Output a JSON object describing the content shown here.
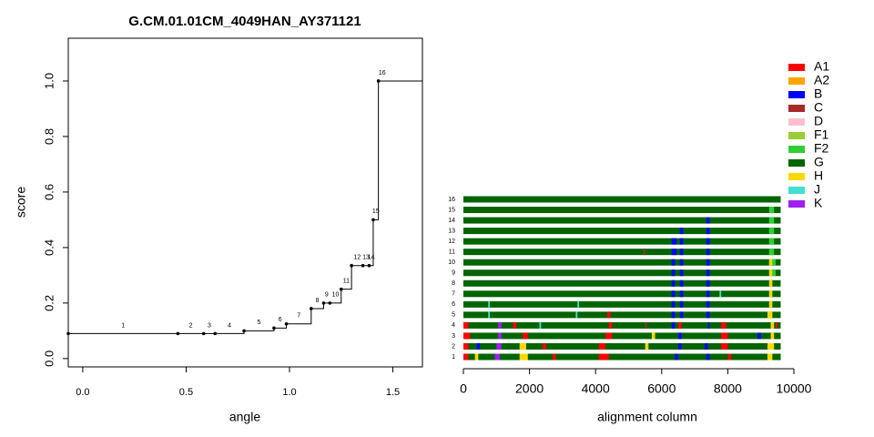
{
  "chart_data": [
    {
      "type": "step",
      "title": "G.CM.01.01CM_4049HAN_AY371121",
      "x_label": "angle",
      "y_label": "score",
      "xlim": [
        -0.07,
        1.643
      ],
      "ylim": [
        -0.03,
        1.154
      ],
      "xticks": [
        {
          "value": 0,
          "label": "0.0"
        },
        {
          "value": 0.5,
          "label": "0.5"
        },
        {
          "value": 1,
          "label": "1.0"
        },
        {
          "value": 1.5,
          "label": "1.5"
        }
      ],
      "yticks": [
        {
          "value": 0,
          "label": "0.0"
        },
        {
          "value": 0.2,
          "label": "0.2"
        },
        {
          "value": 0.4,
          "label": "0.4"
        },
        {
          "value": 0.6,
          "label": "0.6"
        },
        {
          "value": 0.8,
          "label": "0.8"
        },
        {
          "value": 1,
          "label": "1.0"
        }
      ],
      "points": [
        {
          "label": "1",
          "angle": -0.07,
          "score": 0.09
        },
        {
          "label": "2",
          "angle": 0.46,
          "score": 0.09
        },
        {
          "label": "3",
          "angle": 0.585,
          "score": 0.09
        },
        {
          "label": "4",
          "angle": 0.64,
          "score": 0.09
        },
        {
          "label": "5",
          "angle": 0.78,
          "score": 0.1
        },
        {
          "label": "6",
          "angle": 0.925,
          "score": 0.11
        },
        {
          "label": "7",
          "angle": 0.985,
          "score": 0.125
        },
        {
          "label": "8",
          "angle": 1.105,
          "score": 0.18
        },
        {
          "label": "9",
          "angle": 1.165,
          "score": 0.2
        },
        {
          "label": "10",
          "angle": 1.195,
          "score": 0.2
        },
        {
          "label": "11",
          "angle": 1.25,
          "score": 0.25
        },
        {
          "label": "12",
          "angle": 1.3,
          "score": 0.335
        },
        {
          "label": "13",
          "angle": 1.355,
          "score": 0.335
        },
        {
          "label": "14",
          "angle": 1.385,
          "score": 0.335
        },
        {
          "label": "15",
          "angle": 1.405,
          "score": 0.5
        },
        {
          "label": "16",
          "angle": 1.43,
          "score": 1.0
        }
      ]
    },
    {
      "type": "tracks",
      "x_label": "alignment column",
      "xlim": [
        0,
        10000
      ],
      "xticks": [
        0,
        2000,
        4000,
        6000,
        8000,
        10000
      ],
      "legend": [
        {
          "name": "A1",
          "color": "#ff0000"
        },
        {
          "name": "A2",
          "color": "#ffa500"
        },
        {
          "name": "B",
          "color": "#0000ff"
        },
        {
          "name": "C",
          "color": "#a52a2a"
        },
        {
          "name": "D",
          "color": "#ffc0cb"
        },
        {
          "name": "F1",
          "color": "#9acd32"
        },
        {
          "name": "F2",
          "color": "#32cd32"
        },
        {
          "name": "G",
          "color": "#006400"
        },
        {
          "name": "H",
          "color": "#ffd700"
        },
        {
          "name": "J",
          "color": "#40e0d0"
        },
        {
          "name": "K",
          "color": "#a020f0"
        }
      ],
      "tracks": [
        {
          "label": "1",
          "segments": [
            {
              "start": 0,
              "end": 9600,
              "subtype": "G"
            },
            {
              "start": 0,
              "end": 150,
              "subtype": "A1"
            },
            {
              "start": 350,
              "end": 450,
              "subtype": "H"
            },
            {
              "start": 950,
              "end": 1100,
              "subtype": "K"
            },
            {
              "start": 1700,
              "end": 1950,
              "subtype": "H"
            },
            {
              "start": 2700,
              "end": 2800,
              "subtype": "A1"
            },
            {
              "start": 4100,
              "end": 4400,
              "subtype": "A1"
            },
            {
              "start": 6400,
              "end": 6500,
              "subtype": "B"
            },
            {
              "start": 7350,
              "end": 7450,
              "subtype": "B"
            },
            {
              "start": 8000,
              "end": 8100,
              "subtype": "A1"
            },
            {
              "start": 9200,
              "end": 9350,
              "subtype": "H"
            }
          ]
        },
        {
          "label": "2",
          "segments": [
            {
              "start": 0,
              "end": 9600,
              "subtype": "G"
            },
            {
              "start": 0,
              "end": 150,
              "subtype": "A1"
            },
            {
              "start": 400,
              "end": 500,
              "subtype": "B"
            },
            {
              "start": 1000,
              "end": 1150,
              "subtype": "K"
            },
            {
              "start": 1700,
              "end": 1900,
              "subtype": "H"
            },
            {
              "start": 2400,
              "end": 2500,
              "subtype": "A1"
            },
            {
              "start": 4100,
              "end": 4300,
              "subtype": "A1"
            },
            {
              "start": 5500,
              "end": 5600,
              "subtype": "H"
            },
            {
              "start": 6500,
              "end": 6600,
              "subtype": "B"
            },
            {
              "start": 7300,
              "end": 7400,
              "subtype": "B"
            },
            {
              "start": 7800,
              "end": 8000,
              "subtype": "A1"
            },
            {
              "start": 9200,
              "end": 9400,
              "subtype": "H"
            }
          ]
        },
        {
          "label": "3",
          "segments": [
            {
              "start": 0,
              "end": 9600,
              "subtype": "G"
            },
            {
              "start": 0,
              "end": 200,
              "subtype": "A1"
            },
            {
              "start": 1050,
              "end": 1150,
              "subtype": "K"
            },
            {
              "start": 1800,
              "end": 1950,
              "subtype": "A1"
            },
            {
              "start": 4300,
              "end": 4500,
              "subtype": "A1"
            },
            {
              "start": 5700,
              "end": 5800,
              "subtype": "H"
            },
            {
              "start": 6500,
              "end": 6600,
              "subtype": "B"
            },
            {
              "start": 7800,
              "end": 8000,
              "subtype": "A1"
            },
            {
              "start": 8900,
              "end": 9000,
              "subtype": "B"
            },
            {
              "start": 9300,
              "end": 9400,
              "subtype": "H"
            }
          ]
        },
        {
          "label": "4",
          "segments": [
            {
              "start": 0,
              "end": 9600,
              "subtype": "G"
            },
            {
              "start": 0,
              "end": 150,
              "subtype": "A1"
            },
            {
              "start": 1050,
              "end": 1150,
              "subtype": "K"
            },
            {
              "start": 1500,
              "end": 1600,
              "subtype": "A1"
            },
            {
              "start": 2300,
              "end": 2350,
              "subtype": "J"
            },
            {
              "start": 4400,
              "end": 4500,
              "subtype": "A1"
            },
            {
              "start": 5500,
              "end": 5550,
              "subtype": "C"
            },
            {
              "start": 6300,
              "end": 6400,
              "subtype": "B"
            },
            {
              "start": 6500,
              "end": 6600,
              "subtype": "A1"
            },
            {
              "start": 7400,
              "end": 7450,
              "subtype": "B"
            },
            {
              "start": 7800,
              "end": 7950,
              "subtype": "A1"
            },
            {
              "start": 9300,
              "end": 9400,
              "subtype": "H"
            },
            {
              "start": 9450,
              "end": 9500,
              "subtype": "A1"
            }
          ]
        },
        {
          "label": "5",
          "segments": [
            {
              "start": 0,
              "end": 9600,
              "subtype": "G"
            },
            {
              "start": 750,
              "end": 800,
              "subtype": "J"
            },
            {
              "start": 3400,
              "end": 3450,
              "subtype": "J"
            },
            {
              "start": 4350,
              "end": 4450,
              "subtype": "A1"
            },
            {
              "start": 6300,
              "end": 6400,
              "subtype": "B"
            },
            {
              "start": 6550,
              "end": 6650,
              "subtype": "B"
            },
            {
              "start": 7350,
              "end": 7450,
              "subtype": "B"
            },
            {
              "start": 9200,
              "end": 9350,
              "subtype": "H"
            }
          ]
        },
        {
          "label": "6",
          "segments": [
            {
              "start": 0,
              "end": 9600,
              "subtype": "G"
            },
            {
              "start": 750,
              "end": 800,
              "subtype": "J"
            },
            {
              "start": 3450,
              "end": 3500,
              "subtype": "J"
            },
            {
              "start": 6300,
              "end": 6400,
              "subtype": "B"
            },
            {
              "start": 6550,
              "end": 6650,
              "subtype": "B"
            },
            {
              "start": 7350,
              "end": 7450,
              "subtype": "B"
            },
            {
              "start": 9250,
              "end": 9350,
              "subtype": "H"
            }
          ]
        },
        {
          "label": "7",
          "segments": [
            {
              "start": 0,
              "end": 9600,
              "subtype": "G"
            },
            {
              "start": 6300,
              "end": 6400,
              "subtype": "B"
            },
            {
              "start": 6550,
              "end": 6650,
              "subtype": "B"
            },
            {
              "start": 7350,
              "end": 7450,
              "subtype": "B"
            },
            {
              "start": 7750,
              "end": 7800,
              "subtype": "J"
            },
            {
              "start": 9250,
              "end": 9350,
              "subtype": "H"
            }
          ]
        },
        {
          "label": "8",
          "segments": [
            {
              "start": 0,
              "end": 9600,
              "subtype": "G"
            },
            {
              "start": 6300,
              "end": 6400,
              "subtype": "B"
            },
            {
              "start": 6550,
              "end": 6650,
              "subtype": "B"
            },
            {
              "start": 7350,
              "end": 7450,
              "subtype": "B"
            },
            {
              "start": 9250,
              "end": 9350,
              "subtype": "H"
            }
          ]
        },
        {
          "label": "9",
          "segments": [
            {
              "start": 0,
              "end": 9600,
              "subtype": "G"
            },
            {
              "start": 6300,
              "end": 6400,
              "subtype": "B"
            },
            {
              "start": 6550,
              "end": 6650,
              "subtype": "B"
            },
            {
              "start": 7350,
              "end": 7450,
              "subtype": "B"
            },
            {
              "start": 9250,
              "end": 9350,
              "subtype": "H"
            },
            {
              "start": 9350,
              "end": 9450,
              "subtype": "F2"
            }
          ]
        },
        {
          "label": "10",
          "segments": [
            {
              "start": 0,
              "end": 9600,
              "subtype": "G"
            },
            {
              "start": 6300,
              "end": 6400,
              "subtype": "B"
            },
            {
              "start": 6550,
              "end": 6650,
              "subtype": "B"
            },
            {
              "start": 7350,
              "end": 7450,
              "subtype": "B"
            },
            {
              "start": 9250,
              "end": 9350,
              "subtype": "H"
            },
            {
              "start": 9350,
              "end": 9450,
              "subtype": "F2"
            }
          ]
        },
        {
          "label": "11",
          "segments": [
            {
              "start": 0,
              "end": 9600,
              "subtype": "G"
            },
            {
              "start": 5450,
              "end": 5500,
              "subtype": "C"
            },
            {
              "start": 6300,
              "end": 6450,
              "subtype": "B"
            },
            {
              "start": 6550,
              "end": 6650,
              "subtype": "B"
            },
            {
              "start": 7350,
              "end": 7450,
              "subtype": "B"
            },
            {
              "start": 9250,
              "end": 9400,
              "subtype": "F2"
            }
          ]
        },
        {
          "label": "12",
          "segments": [
            {
              "start": 0,
              "end": 9600,
              "subtype": "G"
            },
            {
              "start": 6300,
              "end": 6450,
              "subtype": "B"
            },
            {
              "start": 6550,
              "end": 6650,
              "subtype": "B"
            },
            {
              "start": 7350,
              "end": 7450,
              "subtype": "B"
            },
            {
              "start": 9250,
              "end": 9400,
              "subtype": "F2"
            }
          ]
        },
        {
          "label": "13",
          "segments": [
            {
              "start": 0,
              "end": 9600,
              "subtype": "G"
            },
            {
              "start": 6550,
              "end": 6650,
              "subtype": "B"
            },
            {
              "start": 7350,
              "end": 7450,
              "subtype": "B"
            },
            {
              "start": 9250,
              "end": 9400,
              "subtype": "F2"
            }
          ]
        },
        {
          "label": "14",
          "segments": [
            {
              "start": 0,
              "end": 9600,
              "subtype": "G"
            },
            {
              "start": 7350,
              "end": 7450,
              "subtype": "B"
            },
            {
              "start": 9250,
              "end": 9400,
              "subtype": "F2"
            }
          ]
        },
        {
          "label": "15",
          "segments": [
            {
              "start": 0,
              "end": 9600,
              "subtype": "G"
            },
            {
              "start": 9250,
              "end": 9400,
              "subtype": "F2"
            }
          ]
        },
        {
          "label": "16",
          "segments": [
            {
              "start": 0,
              "end": 9600,
              "subtype": "G"
            }
          ]
        }
      ]
    }
  ]
}
